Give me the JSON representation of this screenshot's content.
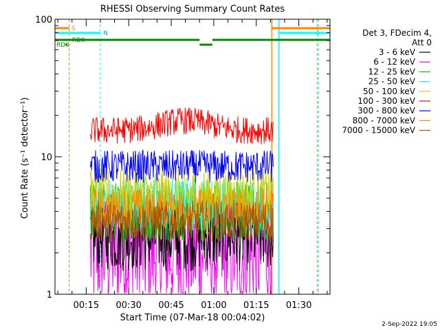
{
  "chart_data": {
    "type": "line",
    "title": "RHESSI Observing Summary Count Rates",
    "xlabel": "Start Time (07-Mar-18 00:04:02)",
    "ylabel": "Count Rate (s⁻¹ detector⁻¹)",
    "yscale": "log",
    "ylim": [
      1,
      100
    ],
    "xlim_minutes": [
      4.0,
      41.0
    ],
    "x_units": "minutes after 00:04:02 (relative to 00:00 for labels)",
    "x_ticks": [
      {
        "value": 15,
        "label": "00:15"
      },
      {
        "value": 30,
        "label": "00:30"
      },
      {
        "value": 45,
        "label": "00:45"
      },
      {
        "value": 60,
        "label": "01:00"
      },
      {
        "value": 75,
        "label": "01:15"
      },
      {
        "value": 90,
        "label": "01:30"
      }
    ],
    "y_ticks": [
      {
        "value": 1,
        "label": "1"
      },
      {
        "value": 10,
        "label": "10"
      },
      {
        "value": 100,
        "label": "100"
      }
    ],
    "legend_title": [
      "Det 3, FDecim 4,",
      "Att 0"
    ],
    "legend_position": "right",
    "series": [
      {
        "name": "3 - 6 keV",
        "color": "#000000",
        "level": 2.6,
        "spread": 0.25
      },
      {
        "name": "6 - 12 keV",
        "color": "#ff00ff",
        "level": 2.0,
        "spread": 0.45
      },
      {
        "name": "12 - 25 keV",
        "color": "#00cc00",
        "level": 4.0,
        "spread": 0.22
      },
      {
        "name": "25 - 50 keV",
        "color": "#00ffff",
        "level": 4.5,
        "spread": 0.2
      },
      {
        "name": "50 - 100 keV",
        "color": "#cccc00",
        "level": 5.2,
        "spread": 0.2
      },
      {
        "name": "100 - 300 keV",
        "color": "#ff0000",
        "level": 15.5,
        "spread": 0.1
      },
      {
        "name": "300 - 800 keV",
        "color": "#0000ff",
        "level": 8.5,
        "spread": 0.12
      },
      {
        "name": "800 - 7000 keV",
        "color": "#ff8800",
        "level": 4.2,
        "spread": 0.15
      },
      {
        "name": "7000 - 15000 keV",
        "color": "#aa5500",
        "level": 3.4,
        "spread": 0.15
      }
    ],
    "data_interval_minutes": [
      16.5,
      81.0
    ],
    "annotations": {
      "saa": {
        "label": "S",
        "color": "#ff8800",
        "start_marker": 9.0,
        "end_marker": 80.5,
        "end_line": 96.5
      },
      "night": {
        "label": "N",
        "color": "#00ffff",
        "start_marker": 20.0,
        "end_marker": 83.0,
        "end_line": 97.0
      },
      "rd0": {
        "label": "RD0",
        "color": "#008800"
      },
      "rd6": {
        "label": "RD6",
        "color": "#008800"
      }
    },
    "grid": false
  },
  "stamp": "2-Sep-2022 19:05"
}
